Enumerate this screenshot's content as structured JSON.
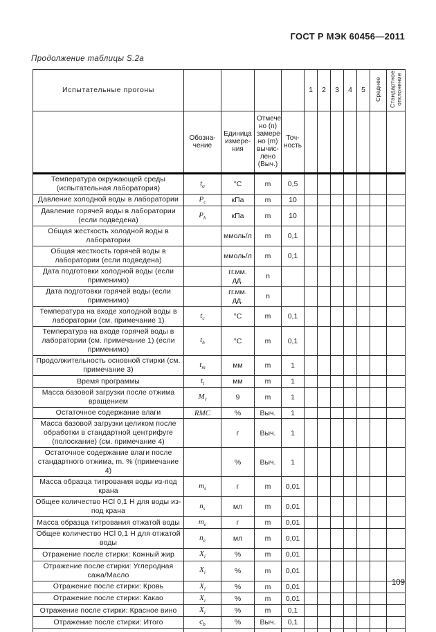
{
  "page": {
    "doc_number": "ГОСТ Р МЭК 60456—2011",
    "table_caption": "Продолжение таблицы S.2a",
    "page_number": "109"
  },
  "table": {
    "header": {
      "runs_title": "Испытательные прогоны",
      "designation_label": "Обозна-\nчение",
      "unit_label": "Единица\nизмере-\nния",
      "marked_label": "Отмече-\nно (n)\nзамере-\nно (m)\nвычис-\nлено\n(Выч.)",
      "accuracy_label": "Точ-\nность",
      "run_numbers": [
        "1",
        "2",
        "3",
        "4",
        "5"
      ],
      "mean_label": "Среднее",
      "stddev_label": "Стандартное\nотклонение"
    },
    "rows": [
      {
        "desc": "Температура окружающей среды (испытательная лаборатория)",
        "sym": "t_a",
        "unit": "°C",
        "mode": "m",
        "prec": "0,5"
      },
      {
        "desc": "Давление холодной воды в лаборатории",
        "sym": "P_c",
        "unit": "кПа",
        "mode": "m",
        "prec": "10"
      },
      {
        "desc": "Давление горячей воды в лаборатории (если подведена)",
        "sym": "P_h",
        "unit": "кПа",
        "mode": "m",
        "prec": "10"
      },
      {
        "desc": "Общая жесткость холодной воды в лаборатории",
        "sym": "",
        "unit": "ммоль/л",
        "mode": "m",
        "prec": "0,1"
      },
      {
        "desc": "Общая жесткость горячей воды в лаборатории (если подведена)",
        "sym": "",
        "unit": "ммоль/л",
        "mode": "m",
        "prec": "0,1"
      },
      {
        "desc": "Дата подготовки холодной воды (если применимо)",
        "sym": "",
        "unit": "гг.мм.\nдд.",
        "mode": "n",
        "prec": ""
      },
      {
        "desc": "Дата подготовки горячей воды (если применимо)",
        "sym": "",
        "unit": "гг.мм.\nдд.",
        "mode": "n",
        "prec": ""
      },
      {
        "desc": "Температура на входе холодной воды в лаборатории (см. примечание 1)",
        "sym": "t_c",
        "unit": "°C",
        "mode": "m",
        "prec": "0,1"
      },
      {
        "desc": "Температура на входе горячей воды в лаборатории (см. примечание 1) (если применимо)",
        "sym": "t_h",
        "unit": "°C",
        "mode": "m",
        "prec": "0,1"
      },
      {
        "desc": "Продолжительность основной стирки (см. примечание 3)",
        "sym": "t_m",
        "unit": "мм",
        "mode": "m",
        "prec": "1"
      },
      {
        "desc": "Время программы",
        "sym": "t_t",
        "unit": "мм",
        "mode": "m",
        "prec": "1"
      },
      {
        "desc": "Масса базовой загрузки после отжима вращением",
        "sym": "M_r",
        "unit": "9",
        "mode": "m",
        "prec": "1"
      },
      {
        "desc": "Остаточное содержание влаги",
        "sym": "RMC",
        "unit": "%",
        "mode": "Выч.",
        "prec": "1"
      },
      {
        "desc": "Масса базовой загрузки целиком после обработки в стандартной центрифуге (полоскание) (см. примечание 4)",
        "sym": "",
        "unit": "г",
        "mode": "Выч.",
        "prec": "1"
      },
      {
        "desc": "Остаточное содержание влаги после стандартного отжима, m. % (примечание 4)",
        "sym": "",
        "unit": "%",
        "mode": "Выч.",
        "prec": "1"
      },
      {
        "desc": "Масса образца титрования воды из-под крана",
        "sym": "m_s",
        "unit": "г",
        "mode": "m",
        "prec": "0,01"
      },
      {
        "desc": "Общее количество HCl 0,1 Н для воды из-под крана",
        "sym": "n_s",
        "unit": "мл",
        "mode": "m",
        "prec": "0,01"
      },
      {
        "desc": "Масса образца титрования отжатой воды",
        "sym": "m_e",
        "unit": "г",
        "mode": "m",
        "prec": "0,01"
      },
      {
        "desc": "Общее количество HCl 0,1 Н для отжатой воды",
        "sym": "n_e",
        "unit": "мл",
        "mode": "m",
        "prec": "0,01"
      },
      {
        "desc": "Отражение после стирки: Кожный жир",
        "sym": "X_i",
        "unit": "%",
        "mode": "m",
        "prec": "0,01"
      },
      {
        "desc": "Отражение после стирки: Углеродная сажа/Масло",
        "sym": "X_i",
        "unit": "%",
        "mode": "m",
        "prec": "0,01"
      },
      {
        "desc": "Отражение после стирки: Кровь",
        "sym": "X_i",
        "unit": "%",
        "mode": "m",
        "prec": "0,01"
      },
      {
        "desc": "Отражение после стирки: Какао",
        "sym": "X_i",
        "unit": "%",
        "mode": "m",
        "prec": "0,01"
      },
      {
        "desc": "Отражение после стирки: Красное вино",
        "sym": "X_i",
        "unit": "%",
        "mode": "m",
        "prec": "0,1"
      },
      {
        "desc": "Отражение после стирки: Итого",
        "sym": "c_b",
        "unit": "%",
        "mode": "Выч.",
        "prec": "0,1"
      }
    ]
  }
}
